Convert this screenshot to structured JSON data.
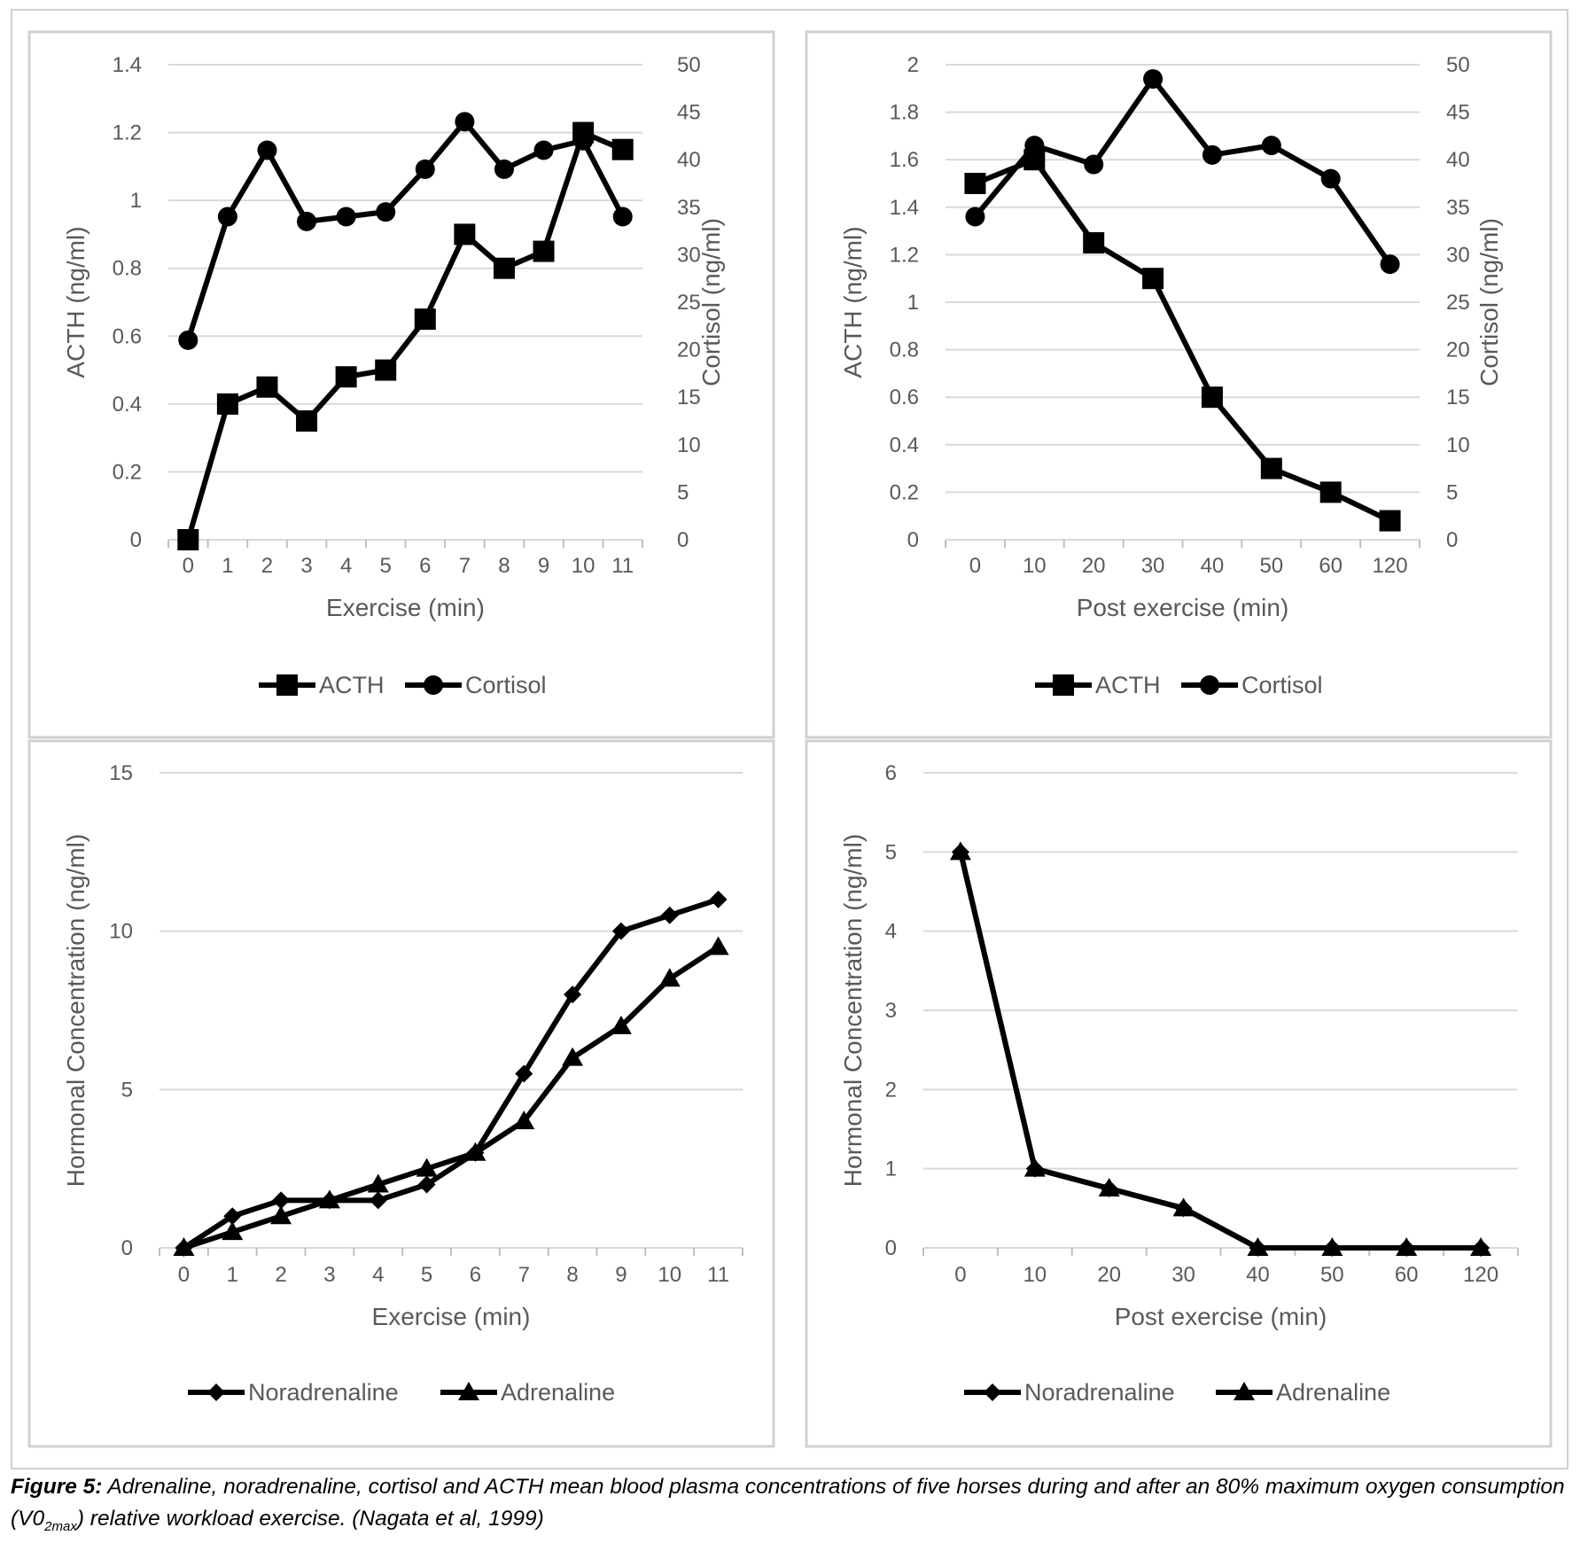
{
  "chart_data": [
    {
      "type": "line",
      "xlabel": "Exercise (min)",
      "ylabel": "ACTH (ng/ml)",
      "y2label": "Cortisol (ng/ml)",
      "categories": [
        "0",
        "1",
        "2",
        "3",
        "4",
        "5",
        "6",
        "7",
        "8",
        "9",
        "10",
        "11"
      ],
      "ylim": [
        0,
        1.4
      ],
      "yticks": [
        "0",
        "0.2",
        "0.4",
        "0.6",
        "0.8",
        "1",
        "1.2",
        "1.4"
      ],
      "y2lim": [
        0,
        50
      ],
      "y2ticks": [
        "0",
        "5",
        "10",
        "15",
        "20",
        "25",
        "30",
        "35",
        "40",
        "45",
        "50"
      ],
      "grid": true,
      "legend_position": "bottom",
      "series": [
        {
          "name": "ACTH",
          "axis": "left",
          "marker": "square",
          "values": [
            0,
            0.4,
            0.45,
            0.35,
            0.48,
            0.5,
            0.65,
            0.9,
            0.8,
            0.85,
            1.2,
            1.15
          ]
        },
        {
          "name": "Cortisol",
          "axis": "right",
          "marker": "circle",
          "values": [
            21,
            34,
            41,
            33.5,
            34,
            34.5,
            39,
            44,
            39,
            41,
            42,
            34
          ]
        }
      ]
    },
    {
      "type": "line",
      "xlabel": "Post exercise (min)",
      "ylabel": "ACTH (ng/ml)",
      "y2label": "Cortisol (ng/ml)",
      "categories": [
        "0",
        "10",
        "20",
        "30",
        "40",
        "50",
        "60",
        "120"
      ],
      "ylim": [
        0,
        2
      ],
      "yticks": [
        "0",
        "0.2",
        "0.4",
        "0.6",
        "0.8",
        "1",
        "1.2",
        "1.4",
        "1.6",
        "1.8",
        "2"
      ],
      "y2lim": [
        0,
        50
      ],
      "y2ticks": [
        "0",
        "5",
        "10",
        "15",
        "20",
        "25",
        "30",
        "35",
        "40",
        "45",
        "50"
      ],
      "grid": true,
      "legend_position": "bottom",
      "series": [
        {
          "name": "ACTH",
          "axis": "left",
          "marker": "square",
          "values": [
            1.5,
            1.6,
            1.25,
            1.1,
            0.6,
            0.3,
            0.2,
            0.08
          ]
        },
        {
          "name": "Cortisol",
          "axis": "right",
          "marker": "circle",
          "values": [
            34,
            41.5,
            39.5,
            48.5,
            40.5,
            41.5,
            38,
            29
          ]
        }
      ]
    },
    {
      "type": "line",
      "xlabel": "Exercise (min)",
      "ylabel": "Hormonal Concentration (ng/ml)",
      "categories": [
        "0",
        "1",
        "2",
        "3",
        "4",
        "5",
        "6",
        "7",
        "8",
        "9",
        "10",
        "11"
      ],
      "ylim": [
        0,
        15
      ],
      "yticks": [
        "0",
        "5",
        "10",
        "15"
      ],
      "grid": true,
      "legend_position": "bottom",
      "series": [
        {
          "name": "Noradrenaline",
          "marker": "diamond",
          "values": [
            0,
            1,
            1.5,
            1.5,
            1.5,
            2,
            3,
            5.5,
            8,
            10,
            10.5,
            11
          ]
        },
        {
          "name": "Adrenaline",
          "marker": "triangle",
          "values": [
            0,
            0.5,
            1,
            1.5,
            2,
            2.5,
            3,
            4,
            6,
            7,
            8.5,
            9.5
          ]
        }
      ]
    },
    {
      "type": "line",
      "xlabel": "Post exercise (min)",
      "ylabel": "Hormonal Concentration (ng/ml)",
      "categories": [
        "0",
        "10",
        "20",
        "30",
        "40",
        "50",
        "60",
        "120"
      ],
      "ylim": [
        0,
        6
      ],
      "yticks": [
        "0",
        "1",
        "2",
        "3",
        "4",
        "5",
        "6"
      ],
      "grid": true,
      "legend_position": "bottom",
      "series": [
        {
          "name": "Noradrenaline",
          "marker": "diamond",
          "values": [
            5,
            1,
            0.75,
            0.5,
            0,
            0,
            0,
            0
          ]
        },
        {
          "name": "Adrenaline",
          "marker": "triangle",
          "values": [
            5,
            1,
            0.75,
            0.5,
            0,
            0,
            0,
            0
          ]
        }
      ]
    }
  ],
  "caption": {
    "label": "Figure 5:",
    "text_part1": " Adrenaline, noradrenaline, cortisol and ACTH mean blood plasma concentrations of five horses during and after an 80% maximum oxygen consumption (V0",
    "subscript": "2max",
    "text_part2": ") relative workload exercise. (Nagata et al, 1999)"
  }
}
